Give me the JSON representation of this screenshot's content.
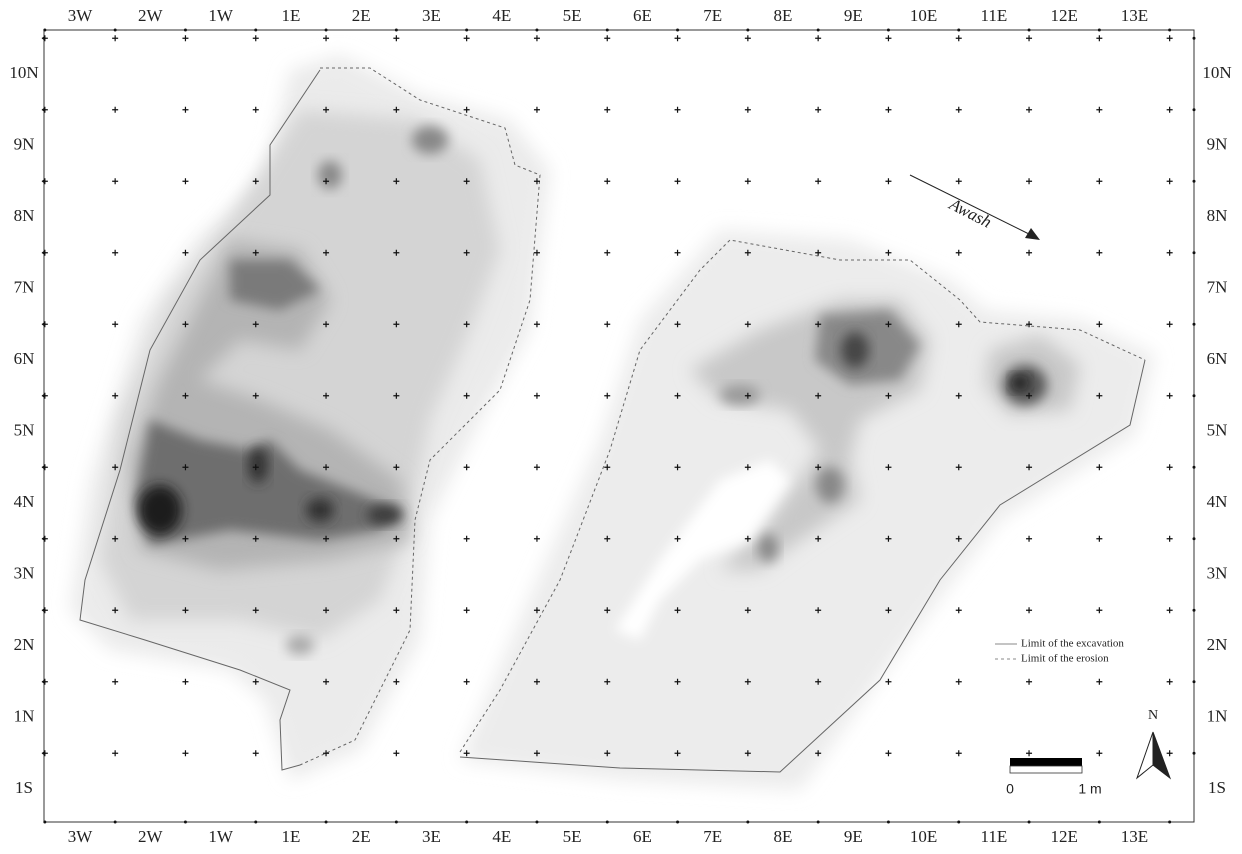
{
  "columns": [
    "3W",
    "2W",
    "1W",
    "1E",
    "2E",
    "3E",
    "4E",
    "5E",
    "6E",
    "7E",
    "8E",
    "9E",
    "10E",
    "11E",
    "12E",
    "13E"
  ],
  "rows": [
    "10N",
    "9N",
    "8N",
    "7N",
    "6N",
    "5N",
    "4N",
    "3N",
    "2N",
    "1N",
    "1S"
  ],
  "river": "Awash",
  "legend": [
    "Limit of the excavation",
    "Limit of the erosion"
  ],
  "scale": {
    "start": "0",
    "end": "1 m"
  },
  "north": "N"
}
